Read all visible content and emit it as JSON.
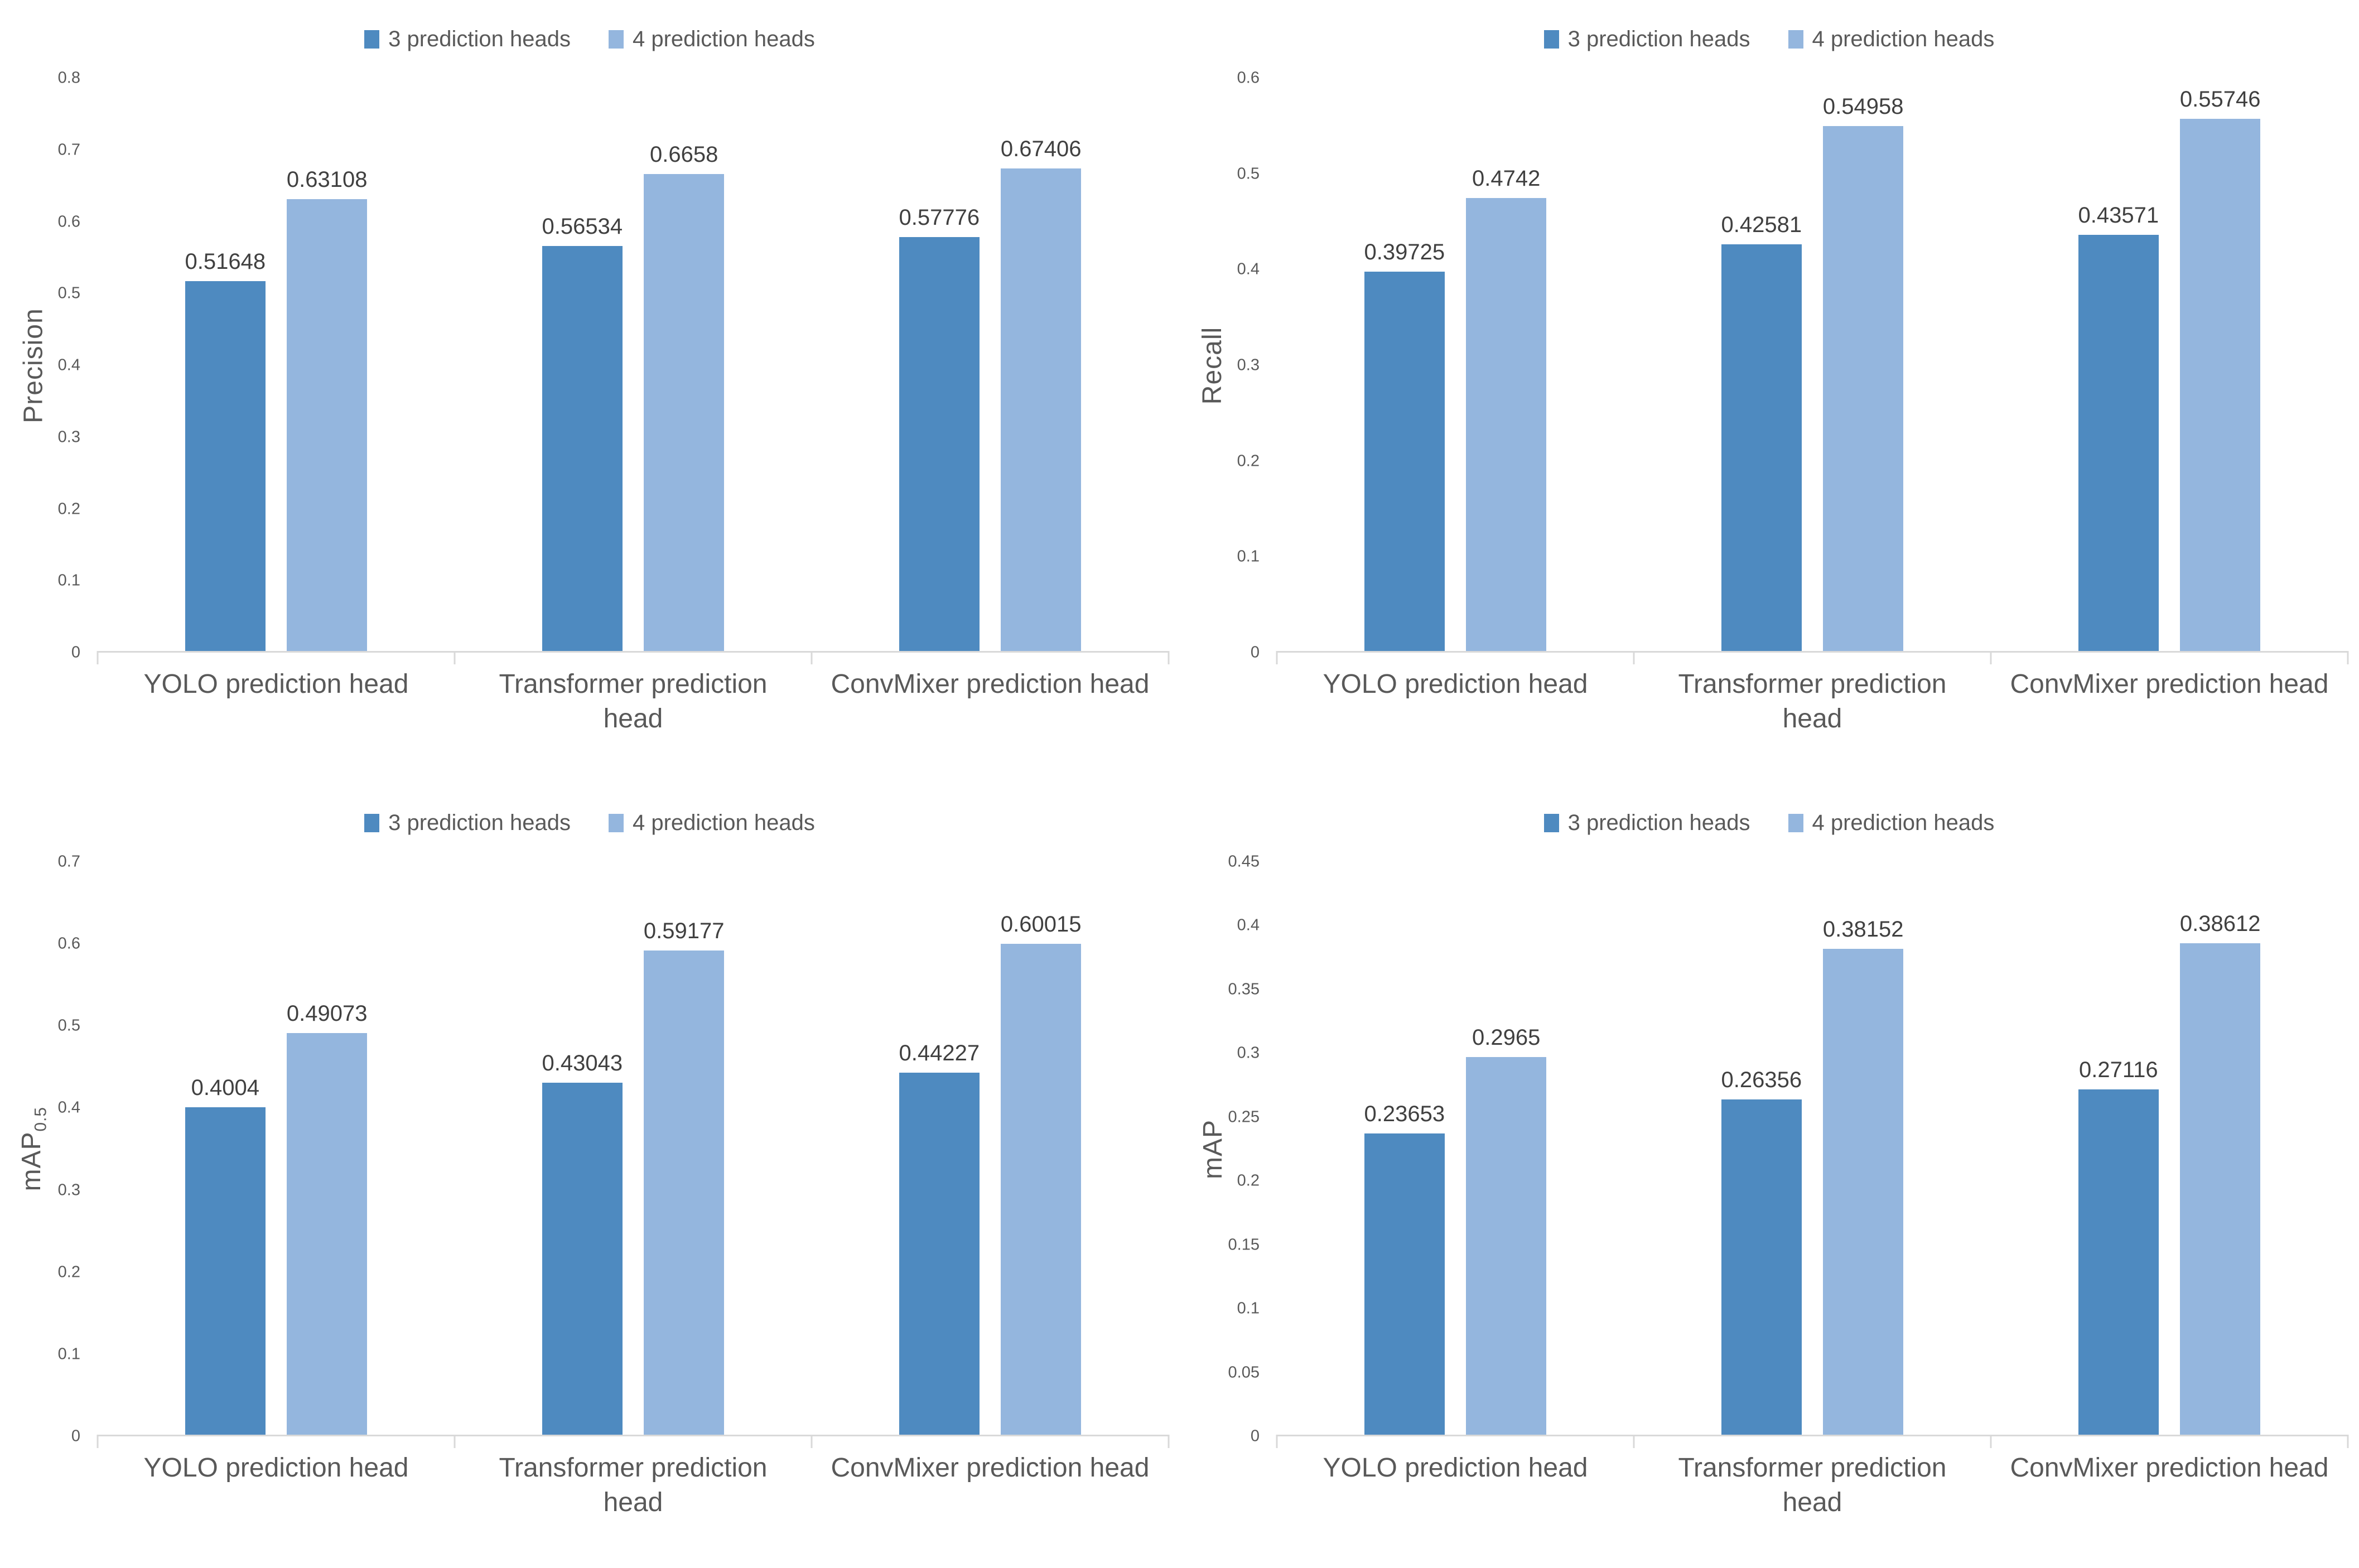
{
  "figure": {
    "background": "#FFFFFF",
    "layout": "2x2-grid-of-bar-charts"
  },
  "colors": {
    "series_3_heads": "#4E8AC0",
    "series_4_heads": "#94B6DE",
    "axis_line": "#D9D9D9",
    "tick_text": "#595959",
    "category_text": "#595959",
    "legend_text": "#595959",
    "value_label_text": "#404040"
  },
  "legend": {
    "position": "top-center",
    "items": [
      {
        "label": "3 prediction heads",
        "color": "#4E8AC0"
      },
      {
        "label": "4 prediction heads",
        "color": "#94B6DE"
      }
    ]
  },
  "chart_data": [
    {
      "name": "precision",
      "type": "bar",
      "title": "",
      "ylabel": "Precision",
      "ylabel_sub": "",
      "ylim": [
        0,
        0.8
      ],
      "ytick_labels": [
        "0",
        "0.1",
        "0.2",
        "0.3",
        "0.4",
        "0.5",
        "0.6",
        "0.7",
        "0.8"
      ],
      "grid": false,
      "legend_position": "top",
      "categories": [
        "YOLO prediction head",
        "Transformer prediction head",
        "ConvMixer prediction head"
      ],
      "category_lines": [
        [
          "YOLO prediction head"
        ],
        [
          "Transformer prediction",
          "head"
        ],
        [
          "ConvMixer prediction head"
        ]
      ],
      "series": [
        {
          "name": "3 prediction heads",
          "color": "#4E8AC0",
          "values": [
            0.51648,
            0.56534,
            0.57776
          ],
          "labels": [
            "0.51648",
            "0.56534",
            "0.57776"
          ]
        },
        {
          "name": "4 prediction heads",
          "color": "#94B6DE",
          "values": [
            0.63108,
            0.6658,
            0.67406
          ],
          "labels": [
            "0.63108",
            "0.6658",
            "0.67406"
          ]
        }
      ]
    },
    {
      "name": "recall",
      "type": "bar",
      "title": "",
      "ylabel": "Recall",
      "ylabel_sub": "",
      "ylim": [
        0,
        0.6
      ],
      "ytick_labels": [
        "0",
        "0.1",
        "0.2",
        "0.3",
        "0.4",
        "0.5",
        "0.6"
      ],
      "grid": false,
      "legend_position": "top",
      "categories": [
        "YOLO prediction head",
        "Transformer prediction head",
        "ConvMixer prediction head"
      ],
      "category_lines": [
        [
          "YOLO prediction head"
        ],
        [
          "Transformer prediction",
          "head"
        ],
        [
          "ConvMixer prediction head"
        ]
      ],
      "series": [
        {
          "name": "3 prediction heads",
          "color": "#4E8AC0",
          "values": [
            0.39725,
            0.42581,
            0.43571
          ],
          "labels": [
            "0.39725",
            "0.42581",
            "0.43571"
          ]
        },
        {
          "name": "4 prediction heads",
          "color": "#94B6DE",
          "values": [
            0.4742,
            0.54958,
            0.55746
          ],
          "labels": [
            "0.4742",
            "0.54958",
            "0.55746"
          ]
        }
      ]
    },
    {
      "name": "map_0.5",
      "type": "bar",
      "title": "",
      "ylabel": "mAP",
      "ylabel_sub": "0.5",
      "ylim": [
        0,
        0.7
      ],
      "ytick_labels": [
        "0",
        "0.1",
        "0.2",
        "0.3",
        "0.4",
        "0.5",
        "0.6",
        "0.7"
      ],
      "grid": false,
      "legend_position": "top",
      "categories": [
        "YOLO prediction head",
        "Transformer prediction head",
        "ConvMixer prediction head"
      ],
      "category_lines": [
        [
          "YOLO prediction head"
        ],
        [
          "Transformer prediction",
          "head"
        ],
        [
          "ConvMixer prediction head"
        ]
      ],
      "series": [
        {
          "name": "3 prediction heads",
          "color": "#4E8AC0",
          "values": [
            0.4004,
            0.43043,
            0.44227
          ],
          "labels": [
            "0.4004",
            "0.43043",
            "0.44227"
          ]
        },
        {
          "name": "4 prediction heads",
          "color": "#94B6DE",
          "values": [
            0.49073,
            0.59177,
            0.60015
          ],
          "labels": [
            "0.49073",
            "0.59177",
            "0.60015"
          ]
        }
      ]
    },
    {
      "name": "map",
      "type": "bar",
      "title": "",
      "ylabel": "mAP",
      "ylabel_sub": "",
      "ylim": [
        0,
        0.45
      ],
      "ytick_labels": [
        "0",
        "0.05",
        "0.1",
        "0.15",
        "0.2",
        "0.25",
        "0.3",
        "0.35",
        "0.4",
        "0.45"
      ],
      "grid": false,
      "legend_position": "top",
      "categories": [
        "YOLO prediction head",
        "Transformer prediction head",
        "ConvMixer prediction head"
      ],
      "category_lines": [
        [
          "YOLO prediction head"
        ],
        [
          "Transformer prediction",
          "head"
        ],
        [
          "ConvMixer prediction head"
        ]
      ],
      "series": [
        {
          "name": "3 prediction heads",
          "color": "#4E8AC0",
          "values": [
            0.23653,
            0.26356,
            0.27116
          ],
          "labels": [
            "0.23653",
            "0.26356",
            "0.27116"
          ]
        },
        {
          "name": "4 prediction heads",
          "color": "#94B6DE",
          "values": [
            0.2965,
            0.38152,
            0.38612
          ],
          "labels": [
            "0.2965",
            "0.38152",
            "0.38612"
          ]
        }
      ]
    }
  ]
}
